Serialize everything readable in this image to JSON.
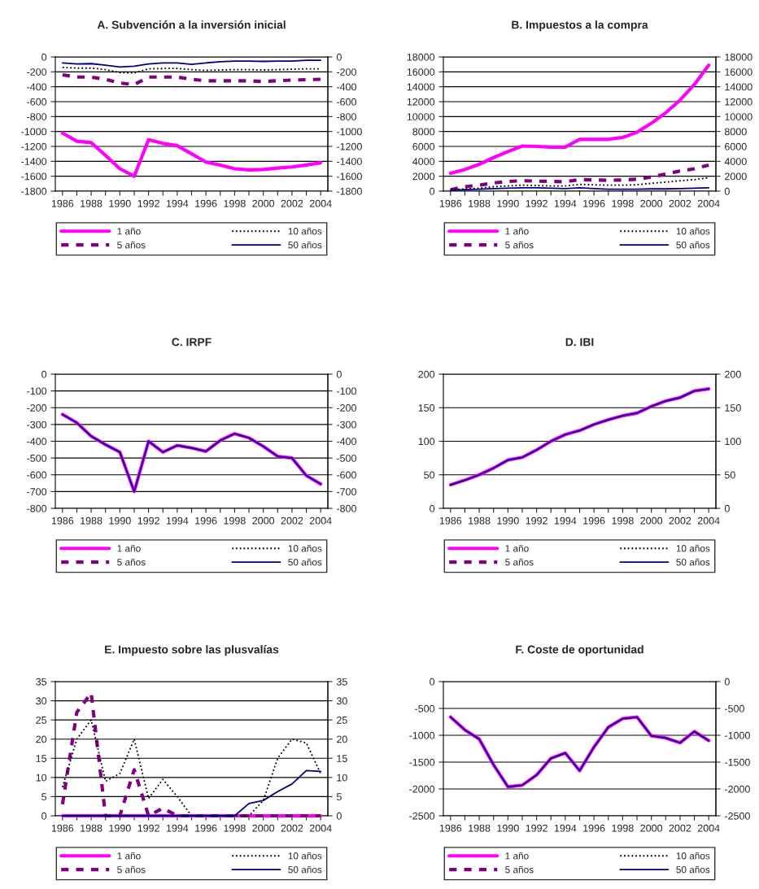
{
  "chart_data": [
    {
      "type": "line",
      "title": "A. Subvención a la inversión inicial",
      "categories": [
        "1986",
        null,
        "1988",
        null,
        "1990",
        null,
        "1992",
        null,
        "1994",
        null,
        "1996",
        null,
        "1998",
        null,
        "2000",
        null,
        "2002",
        null,
        "2004"
      ],
      "series": [
        {
          "name": "1 año",
          "color": "#ff00ff",
          "line_style": "solid",
          "values": [
            -1020,
            -1130,
            -1150,
            -1320,
            -1500,
            -1600,
            -1110,
            -1160,
            -1190,
            -1300,
            -1410,
            -1450,
            -1500,
            -1515,
            -1510,
            -1490,
            -1475,
            -1450,
            -1420
          ]
        },
        {
          "name": "5 años",
          "color": "#800080",
          "line_style": "dashed",
          "values": [
            -240,
            -270,
            -270,
            -300,
            -350,
            -370,
            -270,
            -270,
            -270,
            -300,
            -320,
            -320,
            -320,
            -320,
            -330,
            -320,
            -310,
            -305,
            -300
          ]
        },
        {
          "name": "10 años",
          "color": "#000000",
          "line_style": "dotted",
          "values": [
            -140,
            -150,
            -150,
            -170,
            -210,
            -215,
            -160,
            -155,
            -155,
            -170,
            -180,
            -175,
            -170,
            -170,
            -175,
            -170,
            -165,
            -160,
            -160
          ]
        },
        {
          "name": "50 años",
          "color": "#000080",
          "line_style": "solid",
          "values": [
            -80,
            -95,
            -90,
            -110,
            -135,
            -125,
            -95,
            -80,
            -80,
            -100,
            -80,
            -65,
            -55,
            -55,
            -60,
            -55,
            -55,
            -45,
            -45
          ]
        }
      ],
      "ylim": [
        -1800,
        0
      ],
      "yticks": [
        -1800,
        -1600,
        -1400,
        -1200,
        -1000,
        -800,
        -600,
        -400,
        -200,
        0
      ],
      "y2lim": [
        -1800,
        0
      ],
      "y2ticks": [
        -1800,
        -1600,
        -1400,
        -1200,
        -1000,
        -800,
        -600,
        -400,
        -200,
        0
      ],
      "grid": "y",
      "legend": "bottom"
    },
    {
      "type": "line",
      "title": "B. Impuestos a la compra",
      "categories": [
        "1986",
        null,
        "1988",
        null,
        "1990",
        null,
        "1992",
        null,
        "1994",
        null,
        "1996",
        null,
        "1998",
        null,
        "2000",
        null,
        "2002",
        null,
        "2004"
      ],
      "series": [
        {
          "name": "1 año",
          "color": "#ff00ff",
          "line_style": "solid",
          "values": [
            2400,
            2900,
            3600,
            4500,
            5300,
            6050,
            6000,
            5900,
            5900,
            6950,
            6950,
            6950,
            7200,
            7900,
            9100,
            10500,
            12200,
            14300,
            16900
          ]
        },
        {
          "name": "5 años",
          "color": "#800080",
          "line_style": "dashed",
          "values": [
            200,
            600,
            800,
            1100,
            1300,
            1400,
            1350,
            1300,
            1250,
            1550,
            1500,
            1450,
            1500,
            1600,
            1900,
            2300,
            2700,
            3000,
            3500
          ]
        },
        {
          "name": "10 años",
          "color": "#000000",
          "line_style": "dotted",
          "values": [
            200,
            300,
            400,
            600,
            700,
            800,
            750,
            700,
            700,
            900,
            850,
            800,
            800,
            850,
            1050,
            1200,
            1400,
            1550,
            1800
          ]
        },
        {
          "name": "50 años",
          "color": "#000080",
          "line_style": "solid",
          "values": [
            100,
            200,
            250,
            350,
            400,
            450,
            450,
            400,
            350,
            450,
            350,
            250,
            250,
            250,
            300,
            300,
            350,
            400,
            450
          ]
        }
      ],
      "ylim": [
        0,
        18000
      ],
      "yticks": [
        0,
        2000,
        4000,
        6000,
        8000,
        10000,
        12000,
        14000,
        16000,
        18000
      ],
      "y2lim": [
        0,
        18000
      ],
      "y2ticks": [
        0,
        2000,
        4000,
        6000,
        8000,
        10000,
        12000,
        14000,
        16000,
        18000
      ],
      "grid": "y",
      "legend": "bottom"
    },
    {
      "type": "line",
      "title": "C. IRPF",
      "categories": [
        "1986",
        null,
        "1988",
        null,
        "1990",
        null,
        "1992",
        null,
        "1994",
        null,
        "1996",
        null,
        "1998",
        null,
        "2000",
        null,
        "2002",
        null,
        "2004"
      ],
      "series": [
        {
          "name": "1 año",
          "color": "#ff00ff",
          "line_style": "solid",
          "values": [
            -240,
            -290,
            -370,
            -420,
            -465,
            -700,
            -400,
            -465,
            -425,
            -440,
            -460,
            -395,
            -355,
            -380,
            -430,
            -490,
            -500,
            -605,
            -655
          ]
        },
        {
          "name": "5 años",
          "color": "#800080",
          "line_style": "dashed",
          "values": [
            null,
            null,
            null,
            null,
            null,
            null,
            null,
            null,
            null,
            null,
            null,
            null,
            null,
            null,
            null,
            null,
            null,
            null,
            null
          ]
        },
        {
          "name": "10 años",
          "color": "#000000",
          "line_style": "dotted",
          "values": [
            null,
            null,
            null,
            null,
            null,
            null,
            null,
            null,
            null,
            null,
            null,
            null,
            null,
            null,
            null,
            null,
            null,
            null,
            null
          ]
        },
        {
          "name": "50 años",
          "color": "#000080",
          "line_style": "solid",
          "values": [
            -240,
            -290,
            -370,
            -420,
            -465,
            -700,
            -400,
            -465,
            -425,
            -440,
            -460,
            -395,
            -355,
            -380,
            -430,
            -490,
            -500,
            -605,
            -655
          ]
        }
      ],
      "ylim": [
        -800,
        0
      ],
      "yticks": [
        -800,
        -700,
        -600,
        -500,
        -400,
        -300,
        -200,
        -100,
        0
      ],
      "y2lim": [
        -800,
        0
      ],
      "y2ticks": [
        -800,
        -700,
        -600,
        -500,
        -400,
        -300,
        -200,
        -100,
        0
      ],
      "grid": "y",
      "legend": "bottom"
    },
    {
      "type": "line",
      "title": "D. IBI",
      "categories": [
        "1986",
        null,
        "1988",
        null,
        "1990",
        null,
        "1992",
        null,
        "1994",
        null,
        "1996",
        null,
        "1998",
        null,
        "2000",
        null,
        "2002",
        null,
        "2004"
      ],
      "series": [
        {
          "name": "1 año",
          "color": "#ff00ff",
          "line_style": "solid",
          "values": [
            35,
            42,
            50,
            60,
            72,
            76,
            87,
            100,
            110,
            116,
            125,
            132,
            138,
            142,
            152,
            160,
            165,
            175,
            178
          ]
        },
        {
          "name": "5 años",
          "color": "#800080",
          "line_style": "dashed",
          "values": [
            null,
            null,
            null,
            null,
            null,
            null,
            null,
            null,
            null,
            null,
            null,
            null,
            null,
            null,
            null,
            null,
            null,
            null,
            null
          ]
        },
        {
          "name": "10 años",
          "color": "#000000",
          "line_style": "dotted",
          "values": [
            null,
            null,
            null,
            null,
            null,
            null,
            null,
            null,
            null,
            null,
            null,
            null,
            null,
            null,
            null,
            null,
            null,
            null,
            null
          ]
        },
        {
          "name": "50 años",
          "color": "#000080",
          "line_style": "solid",
          "values": [
            35,
            42,
            50,
            60,
            72,
            76,
            87,
            100,
            110,
            116,
            125,
            132,
            138,
            142,
            152,
            160,
            165,
            175,
            178
          ]
        }
      ],
      "ylim": [
        0,
        200
      ],
      "yticks": [
        0,
        50,
        100,
        150,
        200
      ],
      "y2lim": [
        0,
        200
      ],
      "y2ticks": [
        0,
        50,
        100,
        150,
        200
      ],
      "grid": "y",
      "legend": "bottom"
    },
    {
      "type": "line",
      "title": "E. Impuesto sobre las plusvalías",
      "categories": [
        "1986",
        null,
        "1988",
        null,
        "1990",
        null,
        "1992",
        null,
        "1994",
        null,
        "1996",
        null,
        "1998",
        null,
        "2000",
        null,
        "2002",
        null,
        "2004"
      ],
      "series": [
        {
          "name": "1 año",
          "color": "#ff00ff",
          "line_style": "solid",
          "values": [
            0,
            0,
            0,
            0,
            0,
            0,
            0,
            0,
            0,
            0,
            0,
            0,
            0,
            0,
            0,
            0,
            0,
            0,
            0
          ]
        },
        {
          "name": "5 años",
          "color": "#800080",
          "line_style": "dashed",
          "values": [
            3,
            27,
            32,
            0,
            0,
            12,
            0,
            2,
            0,
            0,
            0,
            0,
            0,
            0,
            0,
            0,
            0,
            0,
            0
          ]
        },
        {
          "name": "10 años",
          "color": "#000000",
          "line_style": "dotted",
          "values": [
            7.5,
            20,
            25,
            9,
            11,
            20,
            4.5,
            9.5,
            5,
            0,
            0,
            0,
            0,
            0,
            4,
            15,
            20,
            19,
            11
          ]
        },
        {
          "name": "50 años",
          "color": "#000080",
          "line_style": "solid",
          "values": [
            0,
            0,
            0,
            0,
            0,
            0,
            0,
            0,
            0,
            0,
            0,
            0,
            0,
            3.2,
            4,
            6.3,
            8.3,
            11.8,
            11.6
          ]
        }
      ],
      "ylim": [
        0,
        35
      ],
      "yticks": [
        0,
        5,
        10,
        15,
        20,
        25,
        30,
        35
      ],
      "y2lim": [
        0,
        35
      ],
      "y2ticks": [
        0,
        5,
        10,
        15,
        20,
        25,
        30,
        35
      ],
      "grid": "y",
      "legend": "bottom"
    },
    {
      "type": "line",
      "title": "F. Coste de oportunidad",
      "categories": [
        "1986",
        null,
        "1988",
        null,
        "1990",
        null,
        "1992",
        null,
        "1994",
        null,
        "1996",
        null,
        "1998",
        null,
        "2000",
        null,
        "2002",
        null,
        "2004"
      ],
      "series": [
        {
          "name": "1 año",
          "color": "#ff00ff",
          "line_style": "solid",
          "values": [
            -660,
            -900,
            -1070,
            -1550,
            -1960,
            -1930,
            -1740,
            -1430,
            -1330,
            -1660,
            -1220,
            -850,
            -690,
            -660,
            -1010,
            -1050,
            -1140,
            -930,
            -1100
          ]
        },
        {
          "name": "5 años",
          "color": "#800080",
          "line_style": "dashed",
          "values": [
            null,
            null,
            null,
            null,
            null,
            null,
            null,
            null,
            null,
            null,
            null,
            null,
            null,
            null,
            null,
            null,
            null,
            null,
            null
          ]
        },
        {
          "name": "10 años",
          "color": "#000000",
          "line_style": "dotted",
          "values": [
            null,
            null,
            null,
            null,
            null,
            null,
            null,
            null,
            null,
            null,
            null,
            null,
            null,
            null,
            null,
            null,
            null,
            null,
            null
          ]
        },
        {
          "name": "50 años",
          "color": "#000080",
          "line_style": "solid",
          "values": [
            -660,
            -900,
            -1070,
            -1550,
            -1960,
            -1930,
            -1740,
            -1430,
            -1330,
            -1660,
            -1220,
            -850,
            -690,
            -660,
            -1010,
            -1050,
            -1140,
            -930,
            -1100
          ]
        }
      ],
      "ylim": [
        -2500,
        0
      ],
      "yticks": [
        -2500,
        -2000,
        -1500,
        -1000,
        -500,
        0
      ],
      "y2lim": [
        -2500,
        0
      ],
      "y2ticks": [
        -2500,
        -2000,
        -1500,
        -1000,
        -500,
        0
      ],
      "grid": "y",
      "legend": "bottom"
    }
  ]
}
